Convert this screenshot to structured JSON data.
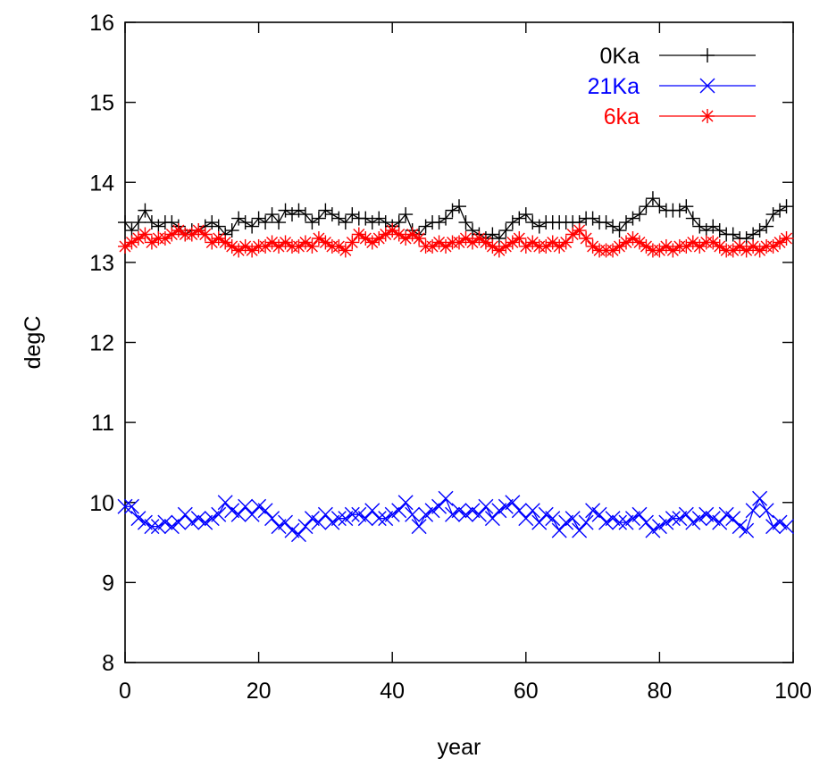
{
  "chart_data": {
    "type": "line",
    "title": "",
    "xlabel": "year",
    "ylabel": "degC",
    "xlim": [
      0,
      100
    ],
    "ylim": [
      8,
      16
    ],
    "xticks": [
      0,
      20,
      40,
      60,
      80,
      100
    ],
    "yticks": [
      8,
      9,
      10,
      11,
      12,
      13,
      14,
      15,
      16
    ],
    "grid": false,
    "legend_position": "top-right",
    "series": [
      {
        "name": "0Ka",
        "color": "#000000",
        "marker": "plus",
        "x": [
          0,
          1,
          2,
          3,
          4,
          5,
          6,
          7,
          8,
          9,
          10,
          11,
          12,
          13,
          14,
          15,
          16,
          17,
          18,
          19,
          20,
          21,
          22,
          23,
          24,
          25,
          26,
          27,
          28,
          29,
          30,
          31,
          32,
          33,
          34,
          35,
          36,
          37,
          38,
          39,
          40,
          41,
          42,
          43,
          44,
          45,
          46,
          47,
          48,
          49,
          50,
          51,
          52,
          53,
          54,
          55,
          56,
          57,
          58,
          59,
          60,
          61,
          62,
          63,
          64,
          65,
          66,
          67,
          68,
          69,
          70,
          71,
          72,
          73,
          74,
          75,
          76,
          77,
          78,
          79,
          80,
          81,
          82,
          83,
          84,
          85,
          86,
          87,
          88,
          89,
          90,
          91,
          92,
          93,
          94,
          95,
          96,
          97,
          98,
          99
        ],
        "values": [
          13.5,
          13.4,
          13.5,
          13.65,
          13.5,
          13.45,
          13.5,
          13.5,
          13.45,
          13.35,
          13.4,
          13.4,
          13.45,
          13.5,
          13.45,
          13.35,
          13.4,
          13.55,
          13.5,
          13.45,
          13.55,
          13.5,
          13.6,
          13.5,
          13.65,
          13.6,
          13.65,
          13.6,
          13.5,
          13.55,
          13.65,
          13.6,
          13.55,
          13.5,
          13.6,
          13.55,
          13.55,
          13.5,
          13.55,
          13.5,
          13.45,
          13.5,
          13.6,
          13.4,
          13.35,
          13.45,
          13.5,
          13.5,
          13.55,
          13.65,
          13.7,
          13.5,
          13.4,
          13.35,
          13.3,
          13.35,
          13.3,
          13.4,
          13.5,
          13.55,
          13.6,
          13.5,
          13.45,
          13.5,
          13.5,
          13.5,
          13.5,
          13.5,
          13.5,
          13.55,
          13.55,
          13.5,
          13.5,
          13.45,
          13.4,
          13.5,
          13.55,
          13.6,
          13.7,
          13.8,
          13.7,
          13.65,
          13.65,
          13.65,
          13.7,
          13.55,
          13.45,
          13.4,
          13.45,
          13.4,
          13.35,
          13.35,
          13.3,
          13.3,
          13.35,
          13.4,
          13.45,
          13.6,
          13.65,
          13.7
        ]
      },
      {
        "name": "21Ka",
        "color": "#0000ff",
        "marker": "x",
        "x": [
          0,
          1,
          2,
          3,
          4,
          5,
          6,
          7,
          8,
          9,
          10,
          11,
          12,
          13,
          14,
          15,
          16,
          17,
          18,
          19,
          20,
          21,
          22,
          23,
          24,
          25,
          26,
          27,
          28,
          29,
          30,
          31,
          32,
          33,
          34,
          35,
          36,
          37,
          38,
          39,
          40,
          41,
          42,
          43,
          44,
          45,
          46,
          47,
          48,
          49,
          50,
          51,
          52,
          53,
          54,
          55,
          56,
          57,
          58,
          59,
          60,
          61,
          62,
          63,
          64,
          65,
          66,
          67,
          68,
          69,
          70,
          71,
          72,
          73,
          74,
          75,
          76,
          77,
          78,
          79,
          80,
          81,
          82,
          83,
          84,
          85,
          86,
          87,
          88,
          89,
          90,
          91,
          92,
          93,
          94,
          95,
          96,
          97,
          98,
          99
        ],
        "values": [
          9.95,
          9.95,
          9.8,
          9.75,
          9.7,
          9.7,
          9.75,
          9.7,
          9.75,
          9.85,
          9.75,
          9.8,
          9.75,
          9.8,
          9.85,
          10.0,
          9.9,
          9.85,
          9.95,
          9.85,
          9.95,
          9.9,
          9.8,
          9.7,
          9.75,
          9.65,
          9.6,
          9.7,
          9.8,
          9.75,
          9.85,
          9.75,
          9.8,
          9.8,
          9.85,
          9.85,
          9.8,
          9.9,
          9.8,
          9.8,
          9.85,
          9.9,
          10.0,
          9.85,
          9.7,
          9.85,
          9.9,
          9.95,
          10.05,
          9.85,
          9.9,
          9.85,
          9.9,
          9.85,
          9.95,
          9.8,
          9.9,
          9.95,
          10.0,
          9.9,
          9.8,
          9.9,
          9.75,
          9.85,
          9.8,
          9.65,
          9.75,
          9.8,
          9.65,
          9.75,
          9.9,
          9.85,
          9.75,
          9.8,
          9.75,
          9.75,
          9.8,
          9.85,
          9.75,
          9.65,
          9.7,
          9.75,
          9.8,
          9.8,
          9.85,
          9.75,
          9.8,
          9.85,
          9.8,
          9.75,
          9.85,
          9.8,
          9.7,
          9.65,
          9.9,
          10.05,
          9.9,
          9.7,
          9.75,
          9.7
        ]
      },
      {
        "name": "6ka",
        "color": "#ff0000",
        "marker": "star",
        "x": [
          0,
          1,
          2,
          3,
          4,
          5,
          6,
          7,
          8,
          9,
          10,
          11,
          12,
          13,
          14,
          15,
          16,
          17,
          18,
          19,
          20,
          21,
          22,
          23,
          24,
          25,
          26,
          27,
          28,
          29,
          30,
          31,
          32,
          33,
          34,
          35,
          36,
          37,
          38,
          39,
          40,
          41,
          42,
          43,
          44,
          45,
          46,
          47,
          48,
          49,
          50,
          51,
          52,
          53,
          54,
          55,
          56,
          57,
          58,
          59,
          60,
          61,
          62,
          63,
          64,
          65,
          66,
          67,
          68,
          69,
          70,
          71,
          72,
          73,
          74,
          75,
          76,
          77,
          78,
          79,
          80,
          81,
          82,
          83,
          84,
          85,
          86,
          87,
          88,
          89,
          90,
          91,
          92,
          93,
          94,
          95,
          96,
          97,
          98,
          99
        ],
        "values": [
          13.2,
          13.25,
          13.3,
          13.35,
          13.25,
          13.3,
          13.3,
          13.35,
          13.4,
          13.35,
          13.35,
          13.4,
          13.35,
          13.25,
          13.3,
          13.25,
          13.2,
          13.15,
          13.2,
          13.15,
          13.2,
          13.2,
          13.25,
          13.2,
          13.25,
          13.2,
          13.2,
          13.25,
          13.2,
          13.3,
          13.25,
          13.2,
          13.2,
          13.15,
          13.25,
          13.35,
          13.3,
          13.25,
          13.3,
          13.35,
          13.4,
          13.35,
          13.3,
          13.35,
          13.3,
          13.2,
          13.2,
          13.25,
          13.2,
          13.25,
          13.25,
          13.3,
          13.25,
          13.3,
          13.25,
          13.2,
          13.15,
          13.2,
          13.25,
          13.3,
          13.2,
          13.25,
          13.2,
          13.2,
          13.25,
          13.2,
          13.25,
          13.35,
          13.4,
          13.3,
          13.2,
          13.15,
          13.15,
          13.15,
          13.2,
          13.25,
          13.3,
          13.25,
          13.2,
          13.15,
          13.15,
          13.2,
          13.15,
          13.2,
          13.2,
          13.25,
          13.2,
          13.25,
          13.25,
          13.2,
          13.15,
          13.15,
          13.2,
          13.15,
          13.2,
          13.15,
          13.2,
          13.2,
          13.25,
          13.3
        ]
      }
    ]
  }
}
